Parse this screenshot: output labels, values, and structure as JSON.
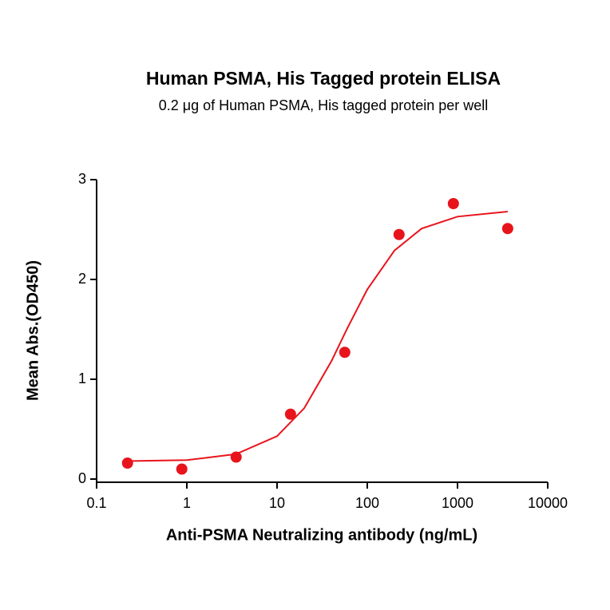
{
  "chart_data": {
    "type": "scatter",
    "title": "Human PSMA, His Tagged protein ELISA",
    "subtitle": "0.2 μg of Human PSMA, His tagged protein per well",
    "x_label": "Anti-PSMA Neutralizing antibody (ng/mL)",
    "y_label": "Mean Abs.(OD450)",
    "xscale": "log",
    "xlim": [
      0.1,
      10000
    ],
    "xticks": [
      0.1,
      1,
      10,
      100,
      1000,
      10000
    ],
    "ylim": [
      0,
      3
    ],
    "yticks": [
      0,
      1,
      2,
      3
    ],
    "grid": false,
    "series": [
      {
        "style": "markers",
        "color": "#e8141c",
        "x": [
          0.22,
          0.88,
          3.52,
          14.1,
          56.3,
          225,
          900,
          3600
        ],
        "values": [
          0.16,
          0.1,
          0.22,
          0.65,
          1.27,
          2.45,
          2.76,
          2.51
        ]
      },
      {
        "style": "line",
        "color": "#e8141c",
        "x": [
          0.22,
          1,
          3.5,
          10,
          20,
          40,
          60,
          100,
          200,
          400,
          1000,
          3600
        ],
        "values": [
          0.18,
          0.19,
          0.25,
          0.43,
          0.71,
          1.18,
          1.51,
          1.9,
          2.29,
          2.51,
          2.63,
          2.68
        ]
      }
    ]
  }
}
